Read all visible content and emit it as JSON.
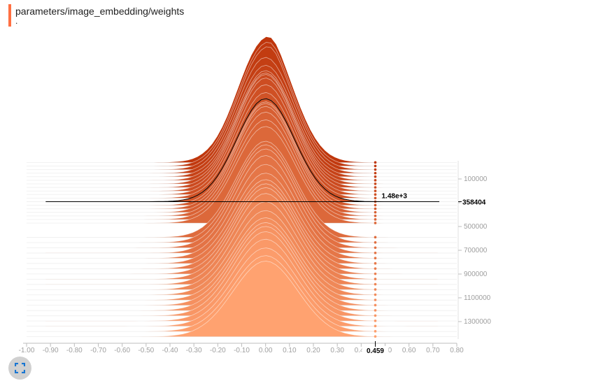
{
  "card": {
    "title": "parameters/image_embedding/weights",
    "subtitle": ".",
    "accent_color": "#ff7043"
  },
  "controls": {
    "expand_icon": "fullscreen-icon"
  },
  "chart_data": {
    "type": "area",
    "chart_kind": "offset-histogram",
    "x_ticks": [
      "-1.00",
      "-0.90",
      "-0.80",
      "-0.70",
      "-0.60",
      "-0.50",
      "-0.40",
      "-0.30",
      "-0.20",
      "-0.10",
      "0.00",
      "0.10",
      "0.20",
      "0.30",
      "0.40",
      "0.50",
      "0.60",
      "0.70",
      "0.80"
    ],
    "x_range": [
      -1.0,
      0.8
    ],
    "y_ticks": [
      "100000",
      "300000",
      "500000",
      "700000",
      "900000",
      "1100000",
      "1300000"
    ],
    "y_tick_values": [
      100000,
      300000,
      500000,
      700000,
      900000,
      1100000,
      1300000
    ],
    "step_range": [
      0,
      1500000
    ],
    "hover": {
      "x_value": "0.459",
      "step": "358404",
      "count": "1.48e+3"
    },
    "color_first": "#bf360c",
    "color_last": "#ffa270",
    "grid": false
  }
}
